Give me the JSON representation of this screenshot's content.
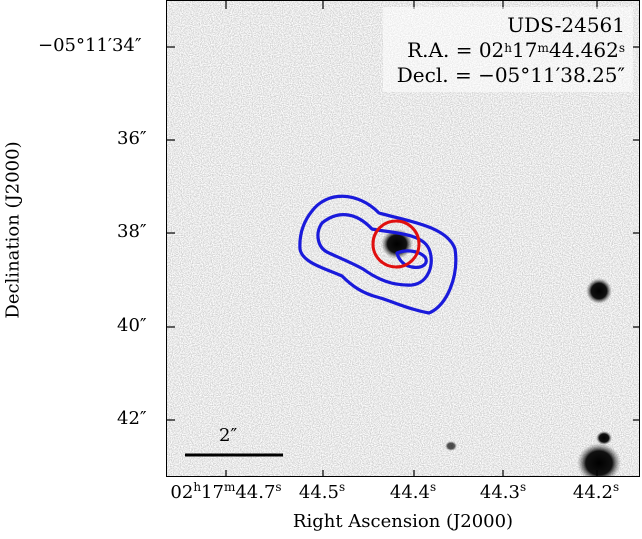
{
  "target": {
    "name": "UDS-24561",
    "ra_text": "R.A. = 02h17m44.462s",
    "ra_prefix": "R.A. = 02",
    "ra_h": "h",
    "ra_mid": "17",
    "ra_m": "m",
    "ra_sec": "44.462",
    "ra_s": "s",
    "dec_text": "Decl. = −05°11′38.25″"
  },
  "axes": {
    "xlabel": "Right Ascension (J2000)",
    "ylabel": "Declination (J2000)",
    "yticks": [
      "−05°11′34″",
      "36″",
      "38″",
      "40″",
      "42″"
    ],
    "xticks": {
      "first_prefix": "02",
      "first_h": "h",
      "first_mid": "17",
      "first_m": "m",
      "first_sec": "44.7",
      "first_s": "s",
      "rest": [
        {
          "val": "44.5",
          "s": "s"
        },
        {
          "val": "44.4",
          "s": "s"
        },
        {
          "val": "44.3",
          "s": "s"
        },
        {
          "val": "44.2",
          "s": "s"
        }
      ]
    }
  },
  "scalebar": {
    "label": "2″"
  },
  "colors": {
    "contour": "#1a1adb",
    "aperture": "#e01010",
    "background_noise": "#d8d8d8"
  }
}
